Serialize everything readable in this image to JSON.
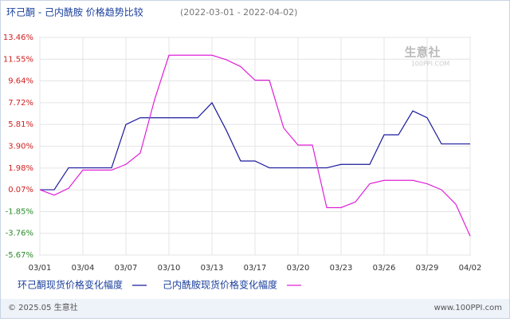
{
  "chart_data": {
    "type": "line",
    "title": "环己酮 - 己内酰胺 价格趋势比较",
    "subtitle": "(2022-03-01 - 2022-04-02)",
    "watermark": "生意社",
    "watermark_sub": "100PPI.COM",
    "categories": [
      "03/01",
      null,
      null,
      "03/04",
      null,
      null,
      "03/07",
      null,
      null,
      "03/10",
      null,
      null,
      "03/13",
      null,
      null,
      "03/17",
      null,
      null,
      "03/20",
      null,
      null,
      "03/23",
      null,
      null,
      "03/26",
      null,
      null,
      "03/29",
      null,
      null,
      "04/02"
    ],
    "series": [
      {
        "name": "环己酮现货价格变化幅度",
        "color": "#1a1a9c",
        "values": [
          0.07,
          0.07,
          2.0,
          2.0,
          2.0,
          2.0,
          5.81,
          6.4,
          6.4,
          6.4,
          6.4,
          6.4,
          7.72,
          5.3,
          2.6,
          2.6,
          2.0,
          2.0,
          2.0,
          2.0,
          2.0,
          2.3,
          2.3,
          2.3,
          4.9,
          4.9,
          7.0,
          6.4,
          4.1,
          4.1,
          4.1
        ]
      },
      {
        "name": "己内酰胺现货价格变化幅度",
        "color": "#e020d8",
        "values": [
          0.07,
          -0.4,
          0.2,
          1.8,
          1.8,
          1.8,
          2.3,
          3.3,
          8.0,
          11.9,
          11.9,
          11.9,
          11.9,
          11.5,
          10.9,
          9.7,
          9.7,
          5.5,
          4.0,
          4.0,
          -1.5,
          -1.5,
          -1.0,
          0.6,
          0.9,
          0.9,
          0.9,
          0.6,
          0.07,
          -1.2,
          -4.0
        ]
      }
    ],
    "ylim": [
      -5.67,
      13.46
    ],
    "yticks": [
      {
        "value": -5.67,
        "label": "-5.67%"
      },
      {
        "value": -3.76,
        "label": "-3.76%"
      },
      {
        "value": -1.85,
        "label": "-1.85%"
      },
      {
        "value": 0.07,
        "label": "0.07%"
      },
      {
        "value": 1.98,
        "label": "1.98%"
      },
      {
        "value": 3.9,
        "label": "3.90%"
      },
      {
        "value": 5.81,
        "label": "5.81%"
      },
      {
        "value": 7.72,
        "label": "7.72%"
      },
      {
        "value": 9.64,
        "label": "9.64%"
      },
      {
        "value": 11.55,
        "label": "11.55%"
      },
      {
        "value": 13.46,
        "label": "13.46%"
      }
    ],
    "grid": true,
    "footer_left": "© 2025.05 生意社",
    "footer_right": "www.100PPI.com"
  }
}
